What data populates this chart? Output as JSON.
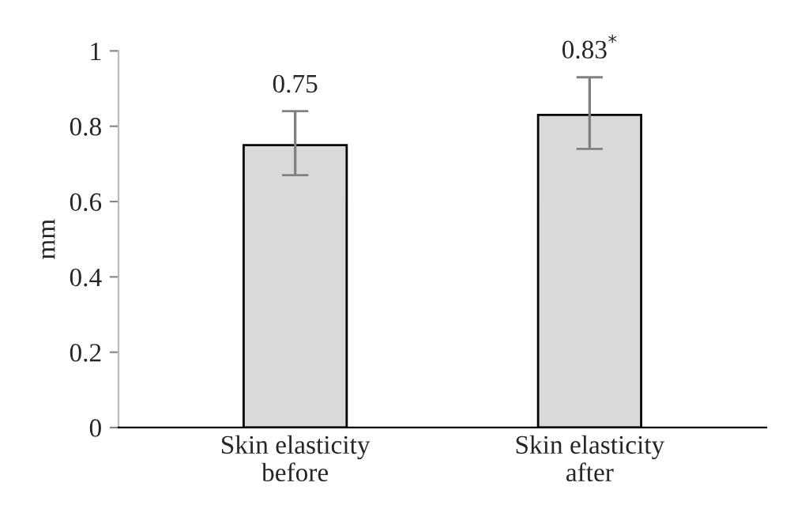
{
  "chart_data": {
    "type": "bar",
    "ylabel": "mm",
    "categories": [
      "Skin elasticity\nbefore",
      "Skin elasticity\nafter"
    ],
    "values": [
      0.75,
      0.83
    ],
    "color": "#d9d9d9",
    "errors": [
      [
        0.67,
        0.84
      ],
      [
        0.74,
        0.93
      ]
    ],
    "value_labels": [
      "0.75",
      "0.83$^{*}$"
    ],
    "ylim": [
      0,
      1
    ],
    "yticks": [
      0,
      0.2,
      0.4,
      0.6,
      0.8,
      1
    ],
    "grid": false
  }
}
